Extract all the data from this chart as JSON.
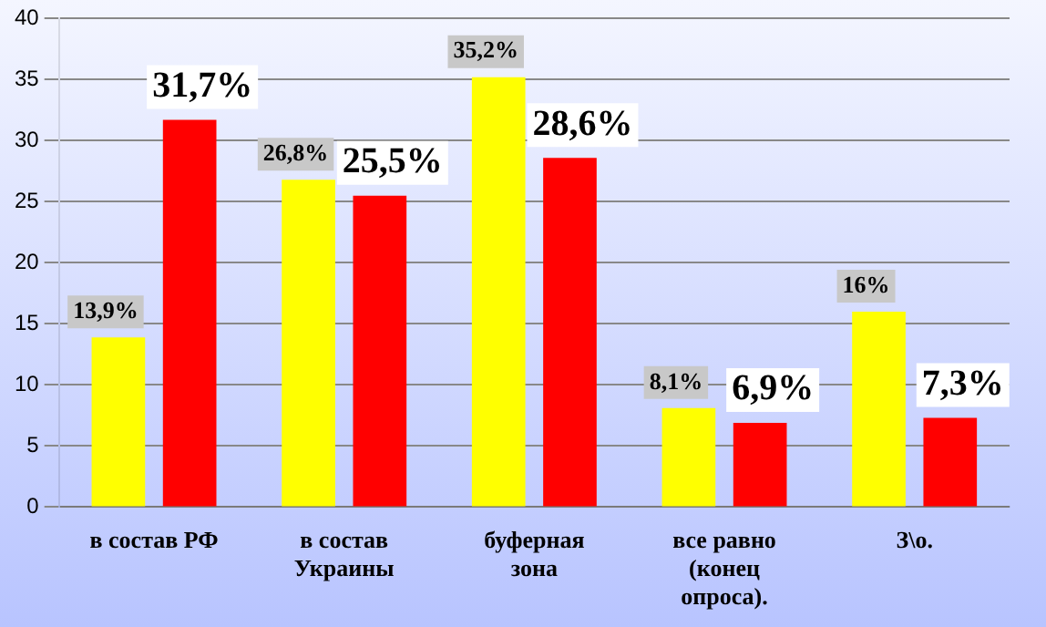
{
  "chart_data": {
    "type": "bar",
    "categories": [
      "в состав РФ",
      "в состав Украины",
      "буферная зона",
      "все равно (конец опроса).",
      "З\\о."
    ],
    "series": [
      {
        "color": "#ffff00",
        "values": [
          13.9,
          26.8,
          35.2,
          8.1,
          16
        ],
        "value_labels": [
          "13,9%",
          "26,8%",
          "35,2%",
          "8,1%",
          "16%"
        ]
      },
      {
        "color": "#ff0000",
        "values": [
          31.7,
          25.5,
          28.6,
          6.9,
          7.3
        ],
        "value_labels": [
          "31,7%",
          "25,5%",
          "28,6%",
          "6,9%",
          "7,3%"
        ]
      }
    ],
    "ylim": [
      0,
      40
    ],
    "yticks": [
      0,
      5,
      10,
      15,
      20,
      25,
      30,
      35,
      40
    ],
    "grid": "y",
    "legend": false
  }
}
